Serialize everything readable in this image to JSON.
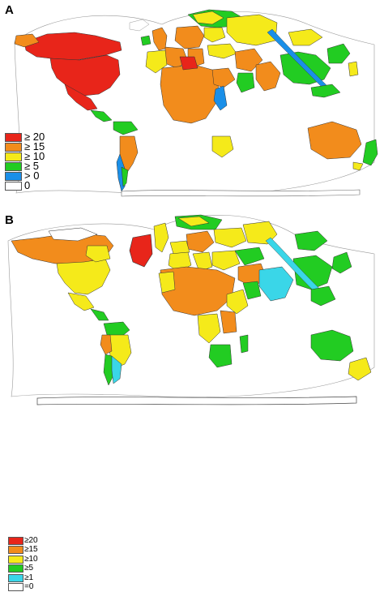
{
  "panels": [
    {
      "label": "A",
      "legend": [
        {
          "text": "≥ 20",
          "color": "#e8251a"
        },
        {
          "text": "≥ 15",
          "color": "#f28c1c"
        },
        {
          "text": "≥ 10",
          "color": "#f5ea1a"
        },
        {
          "text": "≥ 5",
          "color": "#22cc22"
        },
        {
          "text": "> 0",
          "color": "#1a8fe8"
        },
        {
          "text": "0",
          "color": "#ffffff"
        }
      ]
    },
    {
      "label": "B",
      "legend": [
        {
          "text": "≥20",
          "color": "#e8251a"
        },
        {
          "text": "≥15",
          "color": "#f28c1c"
        },
        {
          "text": "≥10",
          "color": "#f5ea1a"
        },
        {
          "text": "≥5",
          "color": "#22cc22"
        },
        {
          "text": "≥1",
          "color": "#3ad6e8"
        },
        {
          "text": "=0",
          "color": "#ffffff"
        }
      ]
    }
  ]
}
